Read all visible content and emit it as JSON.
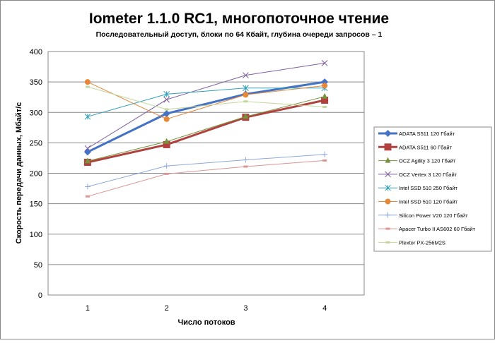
{
  "chart_data": {
    "type": "line",
    "title": "Iometer 1.1.0 RC1, многопоточное чтение",
    "subtitle": "Последовательный  доступ, блоки  по 64 Кбайт,  глубина очереди запросов – 1",
    "xlabel": "Число  потоков",
    "ylabel": "Скорость  передачи данных, Мбайт/с",
    "categories": [
      "1",
      "2",
      "3",
      "4"
    ],
    "ylim": [
      0,
      400
    ],
    "yticks": [
      "0",
      "50",
      "100",
      "150",
      "200",
      "250",
      "300",
      "350",
      "400"
    ],
    "grid": true,
    "legend_position": "right",
    "series": [
      {
        "name": "ADATA  S511 120 Гбайт",
        "values": [
          235,
          298,
          330,
          350
        ],
        "color": "#4472c4",
        "marker": "diamond",
        "width": 3
      },
      {
        "name": "ADATA  S511 60 Гбайт",
        "values": [
          218,
          247,
          292,
          320
        ],
        "color": "#b0413e",
        "marker": "square",
        "width": 3
      },
      {
        "name": "OCZ Agility  3 120 Гбайт",
        "values": [
          220,
          252,
          293,
          326
        ],
        "color": "#77933c",
        "marker": "triangle",
        "width": 1
      },
      {
        "name": "OCZ Vertex  3 120 Гбайт",
        "values": [
          241,
          321,
          361,
          381
        ],
        "color": "#7f5fa0",
        "marker": "x",
        "width": 1
      },
      {
        "name": "Intel  SSD 510 250 Гбайт",
        "values": [
          293,
          330,
          340,
          340
        ],
        "color": "#31a0b8",
        "marker": "star",
        "width": 1
      },
      {
        "name": "Intel  SSD 510 120 Гбайт",
        "values": [
          350,
          289,
          329,
          344
        ],
        "color": "#e6873a",
        "marker": "circle",
        "width": 1
      },
      {
        "name": "Silicon  Power  V20 120 Гбайт",
        "values": [
          178,
          212,
          222,
          231
        ],
        "color": "#8ea9db",
        "marker": "plus",
        "width": 1
      },
      {
        "name": "Apacer  Turbo  II AS602 60 Гбайт",
        "values": [
          162,
          199,
          211,
          221
        ],
        "color": "#d99694",
        "marker": "dash",
        "width": 1
      },
      {
        "name": "Plextor PX-256M2S",
        "values": [
          342,
          305,
          318,
          309
        ],
        "color": "#c3d69b",
        "marker": "dash",
        "width": 1
      }
    ]
  }
}
